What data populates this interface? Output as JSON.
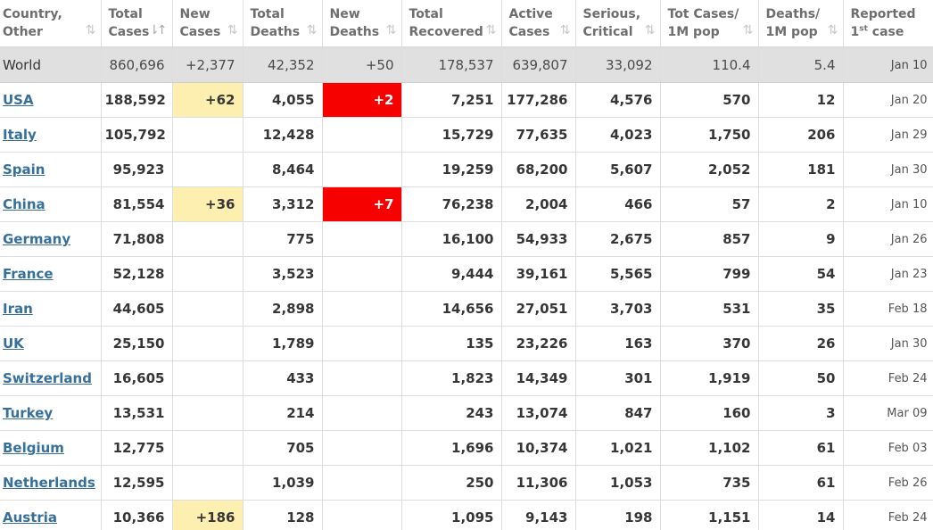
{
  "headers": [
    {
      "line1": "Country,",
      "line2": "Other",
      "sort": "⇅",
      "sup": ""
    },
    {
      "line1": "Total",
      "line2": "Cases",
      "sort": "⇂↑",
      "sup": ""
    },
    {
      "line1": "New",
      "line2": "Cases",
      "sort": "⇅",
      "sup": ""
    },
    {
      "line1": "Total",
      "line2": "Deaths",
      "sort": "⇅",
      "sup": ""
    },
    {
      "line1": "New",
      "line2": "Deaths",
      "sort": "⇅",
      "sup": ""
    },
    {
      "line1": "Total",
      "line2": "Recovered",
      "sort": "⇅",
      "sup": ""
    },
    {
      "line1": "Active",
      "line2": "Cases",
      "sort": "⇅",
      "sup": ""
    },
    {
      "line1": "Serious,",
      "line2": "Critical",
      "sort": "⇅",
      "sup": ""
    },
    {
      "line1": "Tot Cases/",
      "line2": "1M pop",
      "sort": "⇅",
      "sup": ""
    },
    {
      "line1": "Deaths/",
      "line2": "1M pop",
      "sort": "⇅",
      "sup": ""
    },
    {
      "line1": "Reported",
      "line2pre": "1",
      "sup": "st",
      "line2": " case",
      "sort": ""
    }
  ],
  "world": {
    "country": "World",
    "total_cases": "860,696",
    "new_cases": "+2,377",
    "total_deaths": "42,352",
    "new_deaths": "+50",
    "total_recovered": "178,537",
    "active_cases": "639,807",
    "serious_critical": "33,092",
    "tot_cases_1m": "110.4",
    "deaths_1m": "5.4",
    "first_case": "Jan 10"
  },
  "rows": [
    {
      "country": "USA",
      "total_cases": "188,592",
      "new_cases": "+62",
      "total_deaths": "4,055",
      "new_deaths": "+2",
      "total_recovered": "7,251",
      "active_cases": "177,286",
      "serious_critical": "4,576",
      "tot_cases_1m": "570",
      "deaths_1m": "12",
      "first_case": "Jan 20"
    },
    {
      "country": "Italy",
      "total_cases": "105,792",
      "new_cases": "",
      "total_deaths": "12,428",
      "new_deaths": "",
      "total_recovered": "15,729",
      "active_cases": "77,635",
      "serious_critical": "4,023",
      "tot_cases_1m": "1,750",
      "deaths_1m": "206",
      "first_case": "Jan 29"
    },
    {
      "country": "Spain",
      "total_cases": "95,923",
      "new_cases": "",
      "total_deaths": "8,464",
      "new_deaths": "",
      "total_recovered": "19,259",
      "active_cases": "68,200",
      "serious_critical": "5,607",
      "tot_cases_1m": "2,052",
      "deaths_1m": "181",
      "first_case": "Jan 30"
    },
    {
      "country": "China",
      "total_cases": "81,554",
      "new_cases": "+36",
      "total_deaths": "3,312",
      "new_deaths": "+7",
      "total_recovered": "76,238",
      "active_cases": "2,004",
      "serious_critical": "466",
      "tot_cases_1m": "57",
      "deaths_1m": "2",
      "first_case": "Jan 10"
    },
    {
      "country": "Germany",
      "total_cases": "71,808",
      "new_cases": "",
      "total_deaths": "775",
      "new_deaths": "",
      "total_recovered": "16,100",
      "active_cases": "54,933",
      "serious_critical": "2,675",
      "tot_cases_1m": "857",
      "deaths_1m": "9",
      "first_case": "Jan 26"
    },
    {
      "country": "France",
      "total_cases": "52,128",
      "new_cases": "",
      "total_deaths": "3,523",
      "new_deaths": "",
      "total_recovered": "9,444",
      "active_cases": "39,161",
      "serious_critical": "5,565",
      "tot_cases_1m": "799",
      "deaths_1m": "54",
      "first_case": "Jan 23"
    },
    {
      "country": "Iran",
      "total_cases": "44,605",
      "new_cases": "",
      "total_deaths": "2,898",
      "new_deaths": "",
      "total_recovered": "14,656",
      "active_cases": "27,051",
      "serious_critical": "3,703",
      "tot_cases_1m": "531",
      "deaths_1m": "35",
      "first_case": "Feb 18"
    },
    {
      "country": "UK",
      "total_cases": "25,150",
      "new_cases": "",
      "total_deaths": "1,789",
      "new_deaths": "",
      "total_recovered": "135",
      "active_cases": "23,226",
      "serious_critical": "163",
      "tot_cases_1m": "370",
      "deaths_1m": "26",
      "first_case": "Jan 30"
    },
    {
      "country": "Switzerland",
      "total_cases": "16,605",
      "new_cases": "",
      "total_deaths": "433",
      "new_deaths": "",
      "total_recovered": "1,823",
      "active_cases": "14,349",
      "serious_critical": "301",
      "tot_cases_1m": "1,919",
      "deaths_1m": "50",
      "first_case": "Feb 24"
    },
    {
      "country": "Turkey",
      "total_cases": "13,531",
      "new_cases": "",
      "total_deaths": "214",
      "new_deaths": "",
      "total_recovered": "243",
      "active_cases": "13,074",
      "serious_critical": "847",
      "tot_cases_1m": "160",
      "deaths_1m": "3",
      "first_case": "Mar 09"
    },
    {
      "country": "Belgium",
      "total_cases": "12,775",
      "new_cases": "",
      "total_deaths": "705",
      "new_deaths": "",
      "total_recovered": "1,696",
      "active_cases": "10,374",
      "serious_critical": "1,021",
      "tot_cases_1m": "1,102",
      "deaths_1m": "61",
      "first_case": "Feb 03"
    },
    {
      "country": "Netherlands",
      "total_cases": "12,595",
      "new_cases": "",
      "total_deaths": "1,039",
      "new_deaths": "",
      "total_recovered": "250",
      "active_cases": "11,306",
      "serious_critical": "1,053",
      "tot_cases_1m": "735",
      "deaths_1m": "61",
      "first_case": "Feb 26"
    },
    {
      "country": "Austria",
      "total_cases": "10,366",
      "new_cases": "+186",
      "total_deaths": "128",
      "new_deaths": "",
      "total_recovered": "1,095",
      "active_cases": "9,143",
      "serious_critical": "198",
      "tot_cases_1m": "1,151",
      "deaths_1m": "14",
      "first_case": "Feb 24"
    }
  ],
  "colors": {
    "link": "#36709a",
    "new_cases_highlight": "#fcefb0",
    "new_deaths_highlight": "#f70000",
    "world_row_bg": "#e0e0e0"
  }
}
